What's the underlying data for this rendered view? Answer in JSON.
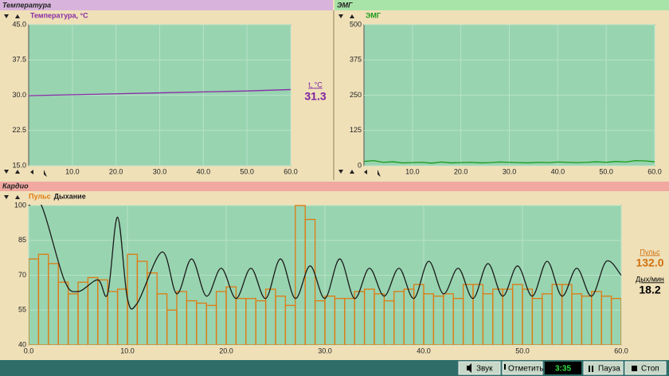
{
  "temperature": {
    "header": "Температура",
    "readout_label": "t, °C",
    "readout_value": "31.3",
    "chart": {
      "type": "line",
      "title": "Температура, °C",
      "xlim": [
        0,
        60
      ],
      "ylim": [
        15,
        45
      ],
      "xticks": [
        {
          "value": 10,
          "label": "10.0"
        },
        {
          "value": 20,
          "label": "20.0"
        },
        {
          "value": 30,
          "label": "30.0"
        },
        {
          "value": 40,
          "label": "40.0"
        },
        {
          "value": 50,
          "label": "50.0"
        },
        {
          "value": 60,
          "label": "60.0"
        }
      ],
      "yticks": [
        {
          "value": 15,
          "label": "15.0"
        },
        22.5,
        {
          "value": 30,
          "label": "30.0"
        },
        37.5,
        {
          "value": 45,
          "label": "45.0"
        }
      ],
      "grid": true,
      "series": [
        {
          "type": "line",
          "color": "#8a2aa8",
          "x": [
            0,
            10,
            20,
            30,
            40,
            50,
            60
          ],
          "values": [
            29.9,
            30.1,
            30.3,
            30.5,
            30.7,
            30.9,
            31.2
          ]
        }
      ]
    }
  },
  "emg": {
    "header": "ЭМГ",
    "chart": {
      "type": "line",
      "title": "ЭМГ",
      "xlim": [
        0,
        60
      ],
      "ylim": [
        0,
        500
      ],
      "xticks": [
        {
          "value": 10,
          "label": "10.0"
        },
        {
          "value": 20,
          "label": "20.0"
        },
        {
          "value": 30,
          "label": "30.0"
        },
        {
          "value": 40,
          "label": "40.0"
        },
        {
          "value": 50,
          "label": "50.0"
        },
        {
          "value": 60,
          "label": "60.0"
        }
      ],
      "yticks": [
        0,
        125,
        250,
        375,
        500
      ],
      "grid": true,
      "series": [
        {
          "type": "line",
          "color": "#1a9a1a",
          "x": [
            0,
            2,
            4,
            6,
            8,
            10,
            12,
            14,
            16,
            18,
            20,
            22,
            24,
            26,
            28,
            30,
            32,
            34,
            36,
            38,
            40,
            42,
            44,
            46,
            48,
            50,
            52,
            54,
            56,
            58,
            60
          ],
          "values": [
            15,
            18,
            12,
            14,
            10,
            11,
            12,
            9,
            13,
            10,
            11,
            12,
            10,
            11,
            13,
            12,
            11,
            10,
            12,
            11,
            13,
            12,
            11,
            12,
            14,
            12,
            15,
            13,
            18,
            17,
            14
          ]
        }
      ]
    }
  },
  "cardio": {
    "header": "Кардио",
    "readouts": [
      {
        "label": "Пульс",
        "value": "132.0"
      },
      {
        "label": "Дых/мин",
        "value": "18.2"
      }
    ],
    "chart": {
      "type": "combo",
      "xlim": [
        0,
        60
      ],
      "ylim": [
        40,
        100
      ],
      "xticks": [
        {
          "value": 0,
          "label": "0.0"
        },
        {
          "value": 10,
          "label": "10.0"
        },
        {
          "value": 20,
          "label": "20.0"
        },
        {
          "value": 30,
          "label": "30.0"
        },
        {
          "value": 40,
          "label": "40.0"
        },
        {
          "value": 50,
          "label": "50.0"
        },
        {
          "value": 60,
          "label": "60.0"
        }
      ],
      "yticks": [
        40,
        55,
        70,
        85,
        100
      ],
      "grid": true,
      "series": [
        {
          "name": "Пульс",
          "type": "step",
          "color": "#e07a10",
          "bins": [
            0,
            1,
            2,
            3,
            4,
            5,
            6,
            7,
            8,
            9,
            10,
            11,
            12,
            13,
            14,
            15,
            16,
            17,
            18,
            19,
            20,
            21,
            22,
            23,
            24,
            25,
            26,
            27,
            28,
            29,
            30,
            31,
            32,
            33,
            34,
            35,
            36,
            37,
            38,
            39,
            40,
            41,
            42,
            43,
            44,
            45,
            46,
            47,
            48,
            49,
            50,
            51,
            52,
            53,
            54,
            55,
            56,
            57,
            58,
            59,
            60
          ],
          "values": [
            77,
            79,
            75,
            67,
            62,
            67,
            69,
            68,
            63,
            64,
            79,
            76,
            71,
            62,
            55,
            63,
            59,
            58,
            57,
            63,
            65,
            60,
            60,
            59,
            64,
            61,
            57,
            100,
            94,
            59,
            61,
            60,
            60,
            63,
            64,
            62,
            59,
            63,
            64,
            66,
            62,
            61,
            62,
            60,
            66,
            66,
            62,
            64,
            64,
            66,
            64,
            60,
            62,
            66,
            66,
            62,
            61,
            63,
            61,
            60
          ]
        },
        {
          "name": "Дыхание",
          "type": "smooth",
          "color": "#1a1a1a",
          "x": [
            0,
            1.3,
            3.6,
            5,
            7,
            8,
            9,
            10,
            11,
            13.5,
            15,
            16.5,
            18,
            19.5,
            21,
            22.5,
            24,
            25.5,
            27,
            28.5,
            30,
            31.5,
            33,
            34.5,
            36,
            37.5,
            39,
            40.5,
            42,
            43.5,
            45,
            46.5,
            48,
            49.5,
            51,
            52.5,
            54,
            55.5,
            57,
            58.5,
            60
          ],
          "values": [
            100,
            100,
            68,
            63,
            68,
            62,
            95,
            60,
            58,
            80,
            62,
            77,
            61,
            73,
            60,
            73,
            60,
            77,
            60,
            74,
            60,
            77,
            60,
            73,
            61,
            73,
            60,
            76,
            62,
            73,
            60,
            75,
            61,
            74,
            61,
            76,
            61,
            73,
            61,
            76,
            70
          ]
        }
      ]
    }
  },
  "toolbar": {
    "sound": "Звук",
    "mark": "Отметить",
    "time": "3:35",
    "pause": "Пауза",
    "stop": "Стоп"
  }
}
